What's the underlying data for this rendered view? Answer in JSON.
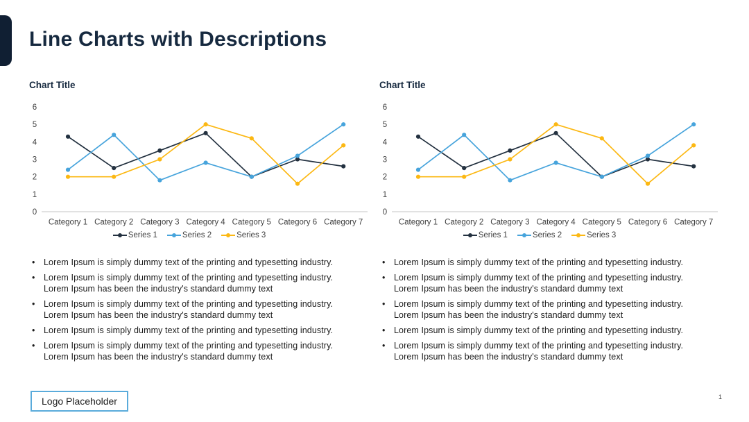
{
  "slide": {
    "title": "Line Charts with Descriptions",
    "logo_label": "Logo Placeholder",
    "page_number": "1"
  },
  "colors": {
    "accent_navy": "#101f33",
    "title_navy": "#16293f",
    "series1_navy": "#233140",
    "series2_blue": "#47a4dc",
    "series3_gold": "#fcb813",
    "axis_line_gray": "#c6c6c6",
    "axis_text_gray": "#3f3f3f",
    "body_text": "#1b1b1b",
    "logo_border_blue": "#5aabdb"
  },
  "panels": [
    {
      "chart_title": "Chart Title",
      "bullets": [
        "Lorem Ipsum is simply dummy text of the printing and typesetting industry.",
        "Lorem Ipsum is simply dummy text of the printing and typesetting industry.\nLorem Ipsum has been the industry's standard dummy text",
        "Lorem Ipsum is simply dummy text of the printing and typesetting industry.\nLorem Ipsum has been the industry's standard dummy text",
        "Lorem Ipsum is simply dummy text of the printing and typesetting industry.",
        "Lorem Ipsum is simply dummy text of the printing and typesetting industry.\nLorem Ipsum has been the industry's standard dummy text"
      ]
    },
    {
      "chart_title": "Chart Title",
      "bullets": [
        "Lorem Ipsum is simply dummy text of the printing and typesetting industry.",
        "Lorem Ipsum is simply dummy text of the printing and typesetting industry.\nLorem Ipsum has been the industry's standard dummy text",
        "Lorem Ipsum is simply dummy text of the printing and typesetting industry.\nLorem Ipsum has been the industry's standard dummy text",
        "Lorem Ipsum is simply dummy text of the printing and typesetting industry.",
        "Lorem Ipsum is simply dummy text of the printing and typesetting industry.\nLorem Ipsum has been the industry's standard dummy text"
      ]
    }
  ],
  "chart_data": [
    {
      "type": "line",
      "title": "Chart Title",
      "categories": [
        "Category 1",
        "Category 2",
        "Category 3",
        "Category 4",
        "Category 5",
        "Category 6",
        "Category 7"
      ],
      "series": [
        {
          "name": "Series 1",
          "color": "#233140",
          "values": [
            4.3,
            2.5,
            3.5,
            4.5,
            2.0,
            3.0,
            2.6
          ]
        },
        {
          "name": "Series 2",
          "color": "#47a4dc",
          "values": [
            2.4,
            4.4,
            1.8,
            2.8,
            2.0,
            3.2,
            5.0
          ]
        },
        {
          "name": "Series 3",
          "color": "#fcb813",
          "values": [
            2.0,
            2.0,
            3.0,
            5.0,
            4.2,
            1.6,
            3.8
          ]
        }
      ],
      "xlabel": "",
      "ylabel": "",
      "ylim": [
        0,
        6
      ],
      "yticks": [
        0,
        1,
        2,
        3,
        4,
        5,
        6
      ],
      "grid": false,
      "legend_position": "bottom"
    },
    {
      "type": "line",
      "title": "Chart Title",
      "categories": [
        "Category 1",
        "Category 2",
        "Category 3",
        "Category 4",
        "Category 5",
        "Category 6",
        "Category 7"
      ],
      "series": [
        {
          "name": "Series 1",
          "color": "#233140",
          "values": [
            4.3,
            2.5,
            3.5,
            4.5,
            2.0,
            3.0,
            2.6
          ]
        },
        {
          "name": "Series 2",
          "color": "#47a4dc",
          "values": [
            2.4,
            4.4,
            1.8,
            2.8,
            2.0,
            3.2,
            5.0
          ]
        },
        {
          "name": "Series 3",
          "color": "#fcb813",
          "values": [
            2.0,
            2.0,
            3.0,
            5.0,
            4.2,
            1.6,
            3.8
          ]
        }
      ],
      "xlabel": "",
      "ylabel": "",
      "ylim": [
        0,
        6
      ],
      "yticks": [
        0,
        1,
        2,
        3,
        4,
        5,
        6
      ],
      "grid": false,
      "legend_position": "bottom"
    }
  ]
}
